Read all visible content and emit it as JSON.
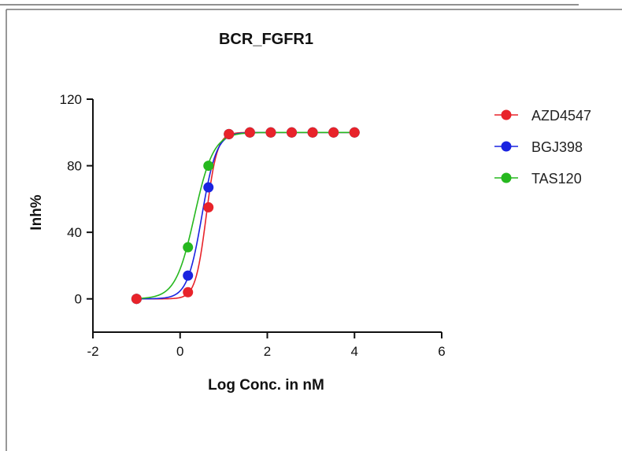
{
  "chart_data": {
    "type": "scatter",
    "title": "BCR_FGFR1",
    "xlabel": "Log Conc. in nM",
    "ylabel": "Inh%",
    "xlim": [
      -2,
      6
    ],
    "ylim": [
      -20,
      120
    ],
    "xticks": [
      -2,
      0,
      2,
      4,
      6
    ],
    "yticks": [
      0,
      40,
      80,
      120
    ],
    "legend_position": "right",
    "series": [
      {
        "name": "AZD4547",
        "color": "#e8232a",
        "x": [
          -1.0,
          0.18,
          0.65,
          1.12,
          1.6,
          2.08,
          2.56,
          3.04,
          3.52,
          4.0
        ],
        "y": [
          0,
          4,
          55,
          99,
          100,
          100,
          100,
          100,
          100,
          100
        ],
        "fit": {
          "bottom": 0,
          "top": 100,
          "log_ic50": 0.6,
          "hill": 3.5
        }
      },
      {
        "name": "BGJ398",
        "color": "#1a23e0",
        "x": [
          -1.0,
          0.18,
          0.65,
          1.12,
          1.6,
          2.08,
          2.56,
          3.04,
          3.52,
          4.0
        ],
        "y": [
          0,
          14,
          67,
          99,
          100,
          100,
          100,
          100,
          100,
          100
        ],
        "fit": {
          "bottom": 0,
          "top": 100,
          "log_ic50": 0.5,
          "hill": 2.6
        }
      },
      {
        "name": "TAS120",
        "color": "#26b81f",
        "x": [
          -1.0,
          0.18,
          0.65,
          1.12,
          1.6,
          2.08,
          2.56,
          3.04,
          3.52,
          4.0
        ],
        "y": [
          0,
          31,
          80,
          99,
          100,
          100,
          100,
          100,
          100,
          100
        ],
        "fit": {
          "bottom": 0,
          "top": 100,
          "log_ic50": 0.33,
          "hill": 2.0
        }
      }
    ]
  }
}
